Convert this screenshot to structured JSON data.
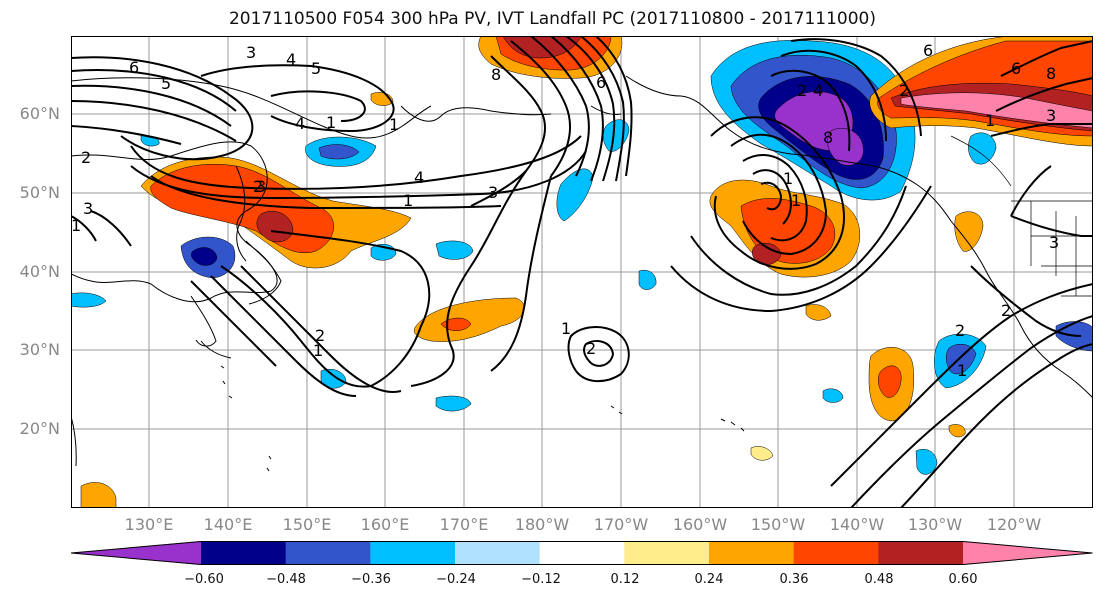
{
  "title": "2017110500 F054 300 hPa PV, IVT Landfall PC (2017110800 - 2017111000)",
  "lat_labels": [
    "60°N",
    "50°N",
    "40°N",
    "30°N",
    "20°N"
  ],
  "lon_labels": [
    "130°E",
    "140°E",
    "150°E",
    "160°E",
    "170°E",
    "180°W",
    "170°W",
    "160°W",
    "150°W",
    "140°W",
    "130°W",
    "120°W"
  ],
  "colorbar": {
    "colors": [
      "#9932cc",
      "#00008b",
      "#3355cc",
      "#00bfff",
      "#b0e2ff",
      "#ffffff",
      "#ffec8b",
      "#ffa500",
      "#ff4500",
      "#b22222",
      "#ff82ab"
    ],
    "tick_labels": [
      "−0.60",
      "−0.48",
      "−0.36",
      "−0.24",
      "−0.12",
      "0.12",
      "0.24",
      "0.36",
      "0.48",
      "0.60"
    ]
  },
  "contour_labels": [
    "6",
    "5",
    "4",
    "3",
    "2",
    "1",
    "8",
    "6",
    "5",
    "4",
    "3",
    "2",
    "1",
    "1",
    "2",
    "2",
    "1",
    "1",
    "2",
    "6",
    "6",
    "8",
    "8",
    "3",
    "4",
    "1",
    "2",
    "3",
    "2",
    "1",
    "2",
    "3",
    "1",
    "1",
    "3",
    "4",
    "1"
  ]
}
